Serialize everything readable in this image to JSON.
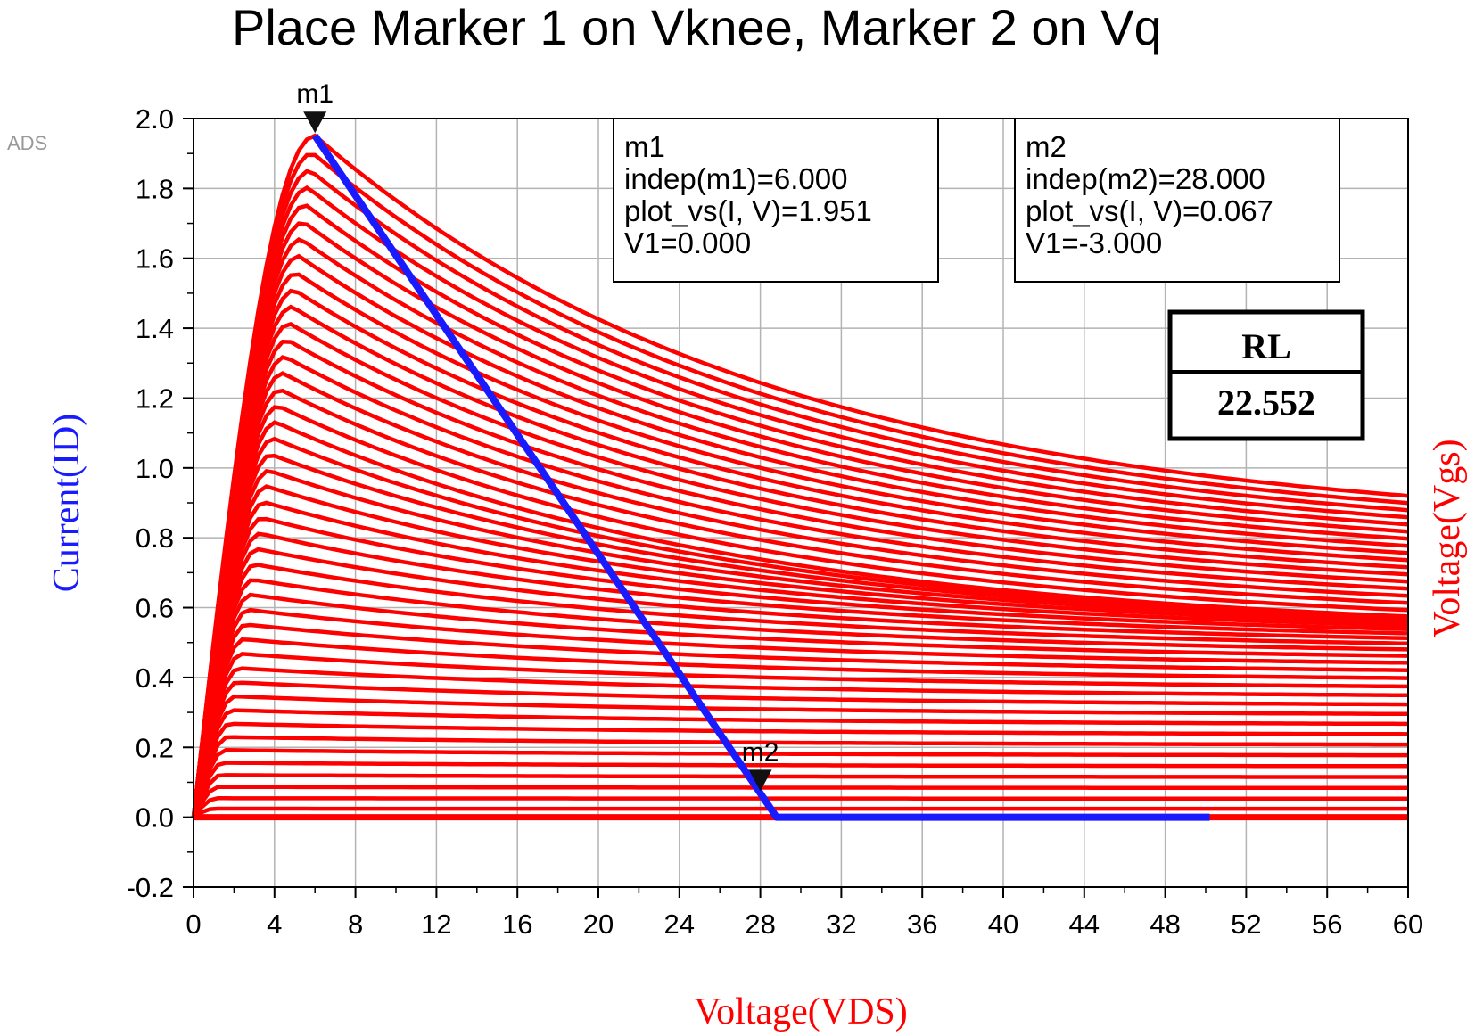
{
  "watermark": "ADS",
  "colors": {
    "curves": "#ff0000",
    "loadline": "#1a1aff",
    "xlabel": "#ff0000",
    "ylabel": "#1a1aff",
    "y2label": "#ff0000"
  },
  "chart_data": {
    "type": "line",
    "title": "Place Marker 1 on Vknee, Marker 2 on Vq",
    "xlabel": "Voltage(VDS)",
    "ylabel": "Current(ID)",
    "y2label": "Voltage(Vgs)",
    "xlim": [
      0,
      60
    ],
    "ylim": [
      -0.2,
      2.0
    ],
    "x_ticks": [
      "0",
      "4",
      "8",
      "12",
      "16",
      "20",
      "24",
      "28",
      "32",
      "36",
      "40",
      "44",
      "48",
      "52",
      "56",
      "60"
    ],
    "y_ticks": [
      "2.0",
      "1.8",
      "1.6",
      "1.4",
      "1.2",
      "1.0",
      "0.8",
      "0.6",
      "0.4",
      "0.2",
      "0.0",
      "-0.2"
    ],
    "grid": true,
    "family_curve_count": 45,
    "family_curve_peak_current_range": [
      0.0,
      1.951
    ],
    "family_curve_end_current_range": [
      0.0,
      0.92
    ],
    "loadline": {
      "name": "RL load line",
      "x": [
        6.0,
        28.8,
        50.2
      ],
      "y": [
        1.951,
        0.0,
        0.0
      ]
    },
    "markers": [
      {
        "label": "m1",
        "x": 6.0,
        "y": 1.951,
        "readout": [
          "m1",
          "indep(m1)=6.000",
          "plot_vs(I, V)=1.951",
          "V1=0.000"
        ]
      },
      {
        "label": "m2",
        "x": 28.0,
        "y": 0.067,
        "readout": [
          "m2",
          "indep(m2)=28.000",
          "plot_vs(I, V)=0.067",
          "V1=-3.000"
        ]
      }
    ],
    "rl_table": {
      "header": "RL",
      "value": "22.552"
    }
  }
}
